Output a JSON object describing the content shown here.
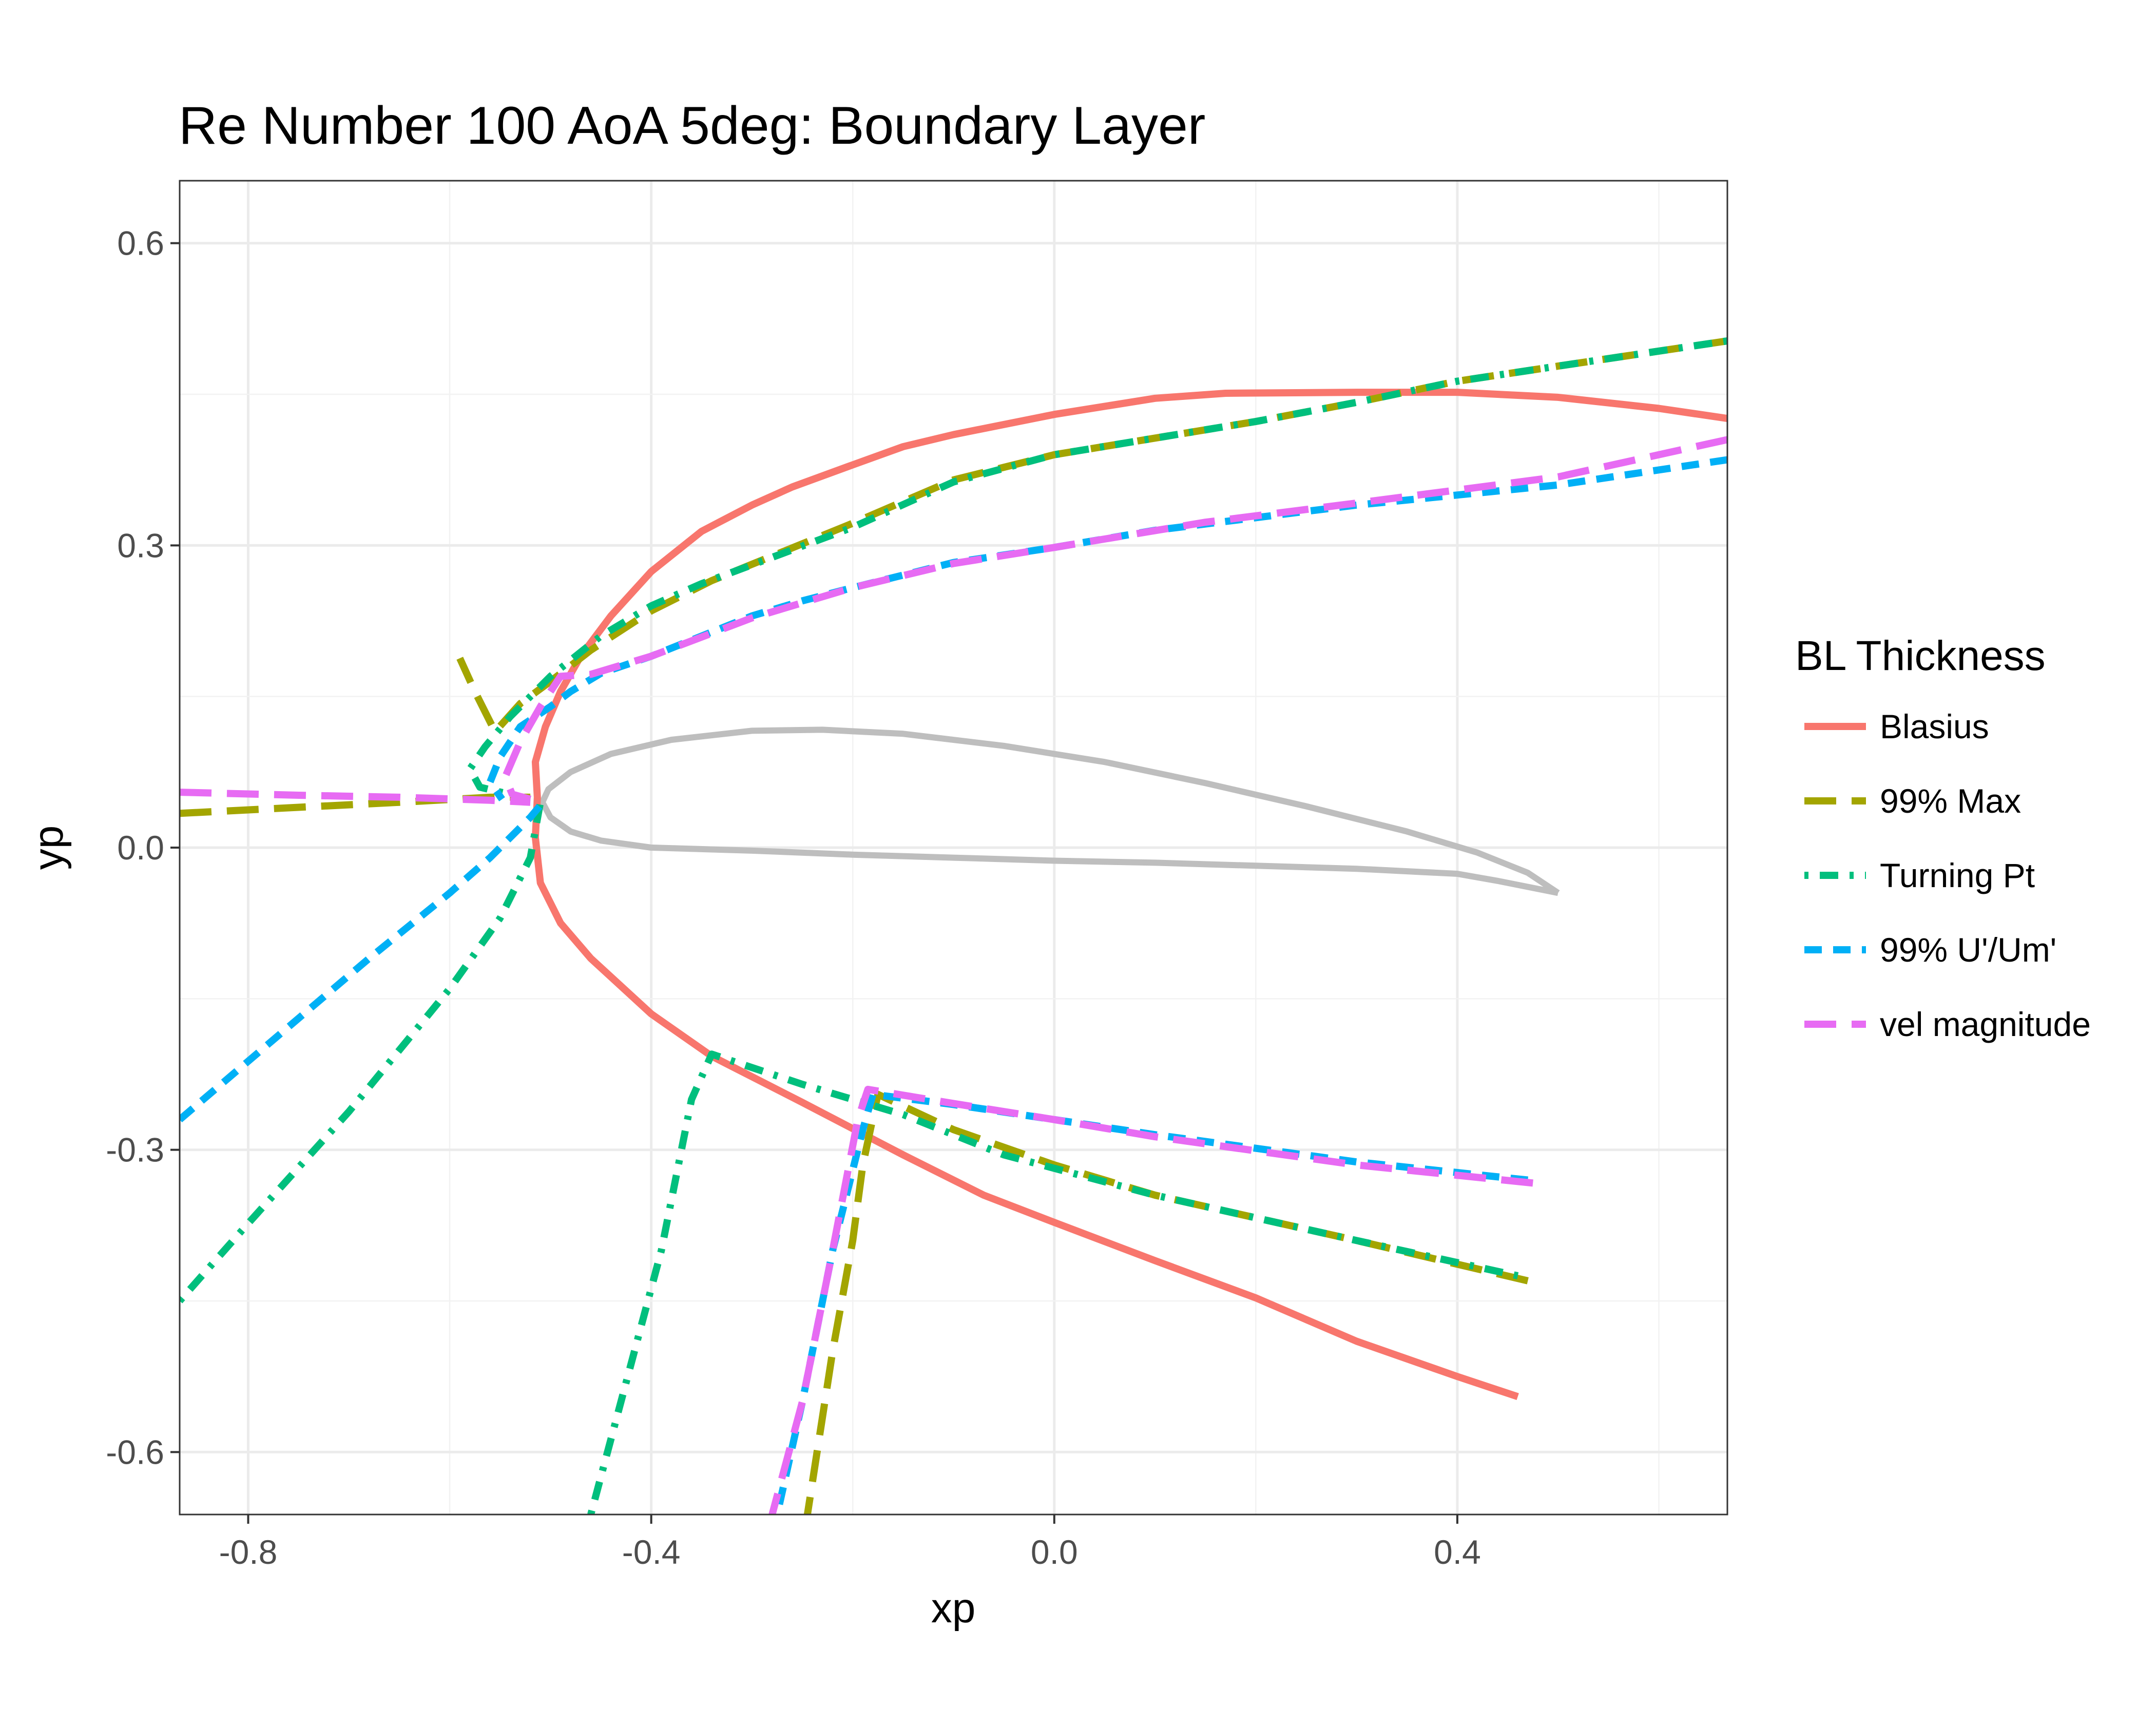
{
  "chart_data": {
    "type": "line",
    "title": "Re Number 100 AoA 5deg: Boundary Layer",
    "xlabel": "xp",
    "ylabel": "yp",
    "xlim": [
      -0.868,
      0.668
    ],
    "ylim": [
      -0.662,
      0.662
    ],
    "x_ticks": [
      -0.8,
      -0.4,
      0.0,
      0.4
    ],
    "x_tick_labels": [
      "-0.8",
      "-0.4",
      "0.0",
      "0.4"
    ],
    "y_ticks": [
      -0.6,
      -0.3,
      0.0,
      0.3,
      0.6
    ],
    "y_tick_labels": [
      "-0.6",
      "-0.3",
      "0.0",
      "0.3",
      "0.6"
    ],
    "grid": true,
    "legend": {
      "title": "BL Thickness",
      "position": "right"
    },
    "airfoil": {
      "color": "#bebebe",
      "points": [
        [
          0.5,
          -0.045
        ],
        [
          0.44,
          -0.033
        ],
        [
          0.4,
          -0.026
        ],
        [
          0.3,
          -0.021
        ],
        [
          0.2,
          -0.018
        ],
        [
          0.1,
          -0.015
        ],
        [
          0.0,
          -0.013
        ],
        [
          -0.1,
          -0.01
        ],
        [
          -0.2,
          -0.007
        ],
        [
          -0.3,
          -0.003
        ],
        [
          -0.4,
          0.0
        ],
        [
          -0.45,
          0.007
        ],
        [
          -0.48,
          0.016
        ],
        [
          -0.5,
          0.03
        ],
        [
          -0.508,
          0.045
        ],
        [
          -0.502,
          0.058
        ],
        [
          -0.48,
          0.075
        ],
        [
          -0.44,
          0.093
        ],
        [
          -0.38,
          0.107
        ],
        [
          -0.3,
          0.116
        ],
        [
          -0.23,
          0.117
        ],
        [
          -0.15,
          0.113
        ],
        [
          -0.05,
          0.101
        ],
        [
          0.05,
          0.085
        ],
        [
          0.15,
          0.064
        ],
        [
          0.25,
          0.041
        ],
        [
          0.35,
          0.016
        ],
        [
          0.42,
          -0.005
        ],
        [
          0.47,
          -0.025
        ],
        [
          0.5,
          -0.045
        ]
      ]
    },
    "series": [
      {
        "name": "Blasius",
        "color": "#f8766d",
        "dash": "solid",
        "segments": [
          [
            [
              0.668,
              0.426
            ],
            [
              0.6,
              0.436
            ],
            [
              0.5,
              0.447
            ],
            [
              0.4,
              0.452
            ],
            [
              0.3,
              0.452
            ],
            [
              0.17,
              0.451
            ],
            [
              0.1,
              0.446
            ],
            [
              0.0,
              0.43
            ],
            [
              -0.1,
              0.41
            ],
            [
              -0.15,
              0.398
            ],
            [
              -0.2,
              0.38
            ],
            [
              -0.26,
              0.358
            ],
            [
              -0.3,
              0.34
            ],
            [
              -0.35,
              0.314
            ],
            [
              -0.4,
              0.274
            ],
            [
              -0.44,
              0.23
            ],
            [
              -0.47,
              0.19
            ],
            [
              -0.49,
              0.155
            ],
            [
              -0.505,
              0.12
            ],
            [
              -0.515,
              0.085
            ],
            [
              -0.513,
              0.05
            ],
            [
              -0.515,
              0.01
            ],
            [
              -0.51,
              -0.035
            ],
            [
              -0.49,
              -0.075
            ],
            [
              -0.46,
              -0.11
            ],
            [
              -0.4,
              -0.165
            ],
            [
              -0.34,
              -0.207
            ],
            [
              -0.25,
              -0.253
            ],
            [
              -0.15,
              -0.305
            ],
            [
              -0.07,
              -0.345
            ],
            [
              0.0,
              -0.372
            ],
            [
              0.1,
              -0.41
            ],
            [
              0.2,
              -0.447
            ],
            [
              0.3,
              -0.49
            ],
            [
              0.4,
              -0.525
            ],
            [
              0.46,
              -0.545
            ]
          ]
        ]
      },
      {
        "name": "99% Max",
        "color": "#a3a500",
        "dash": "longdash",
        "segments": [
          [
            [
              0.668,
              0.503
            ],
            [
              0.5,
              0.478
            ],
            [
              0.4,
              0.463
            ],
            [
              0.3,
              0.442
            ],
            [
              0.2,
              0.423
            ],
            [
              0.0,
              0.39
            ],
            [
              -0.1,
              0.365
            ],
            [
              -0.2,
              0.322
            ],
            [
              -0.34,
              0.265
            ],
            [
              -0.4,
              0.235
            ],
            [
              -0.46,
              0.196
            ],
            [
              -0.5,
              0.165
            ],
            [
              -0.53,
              0.143
            ],
            [
              -0.555,
              0.115
            ],
            [
              -0.575,
              0.155
            ],
            [
              -0.59,
              0.188
            ]
          ],
          [
            [
              -0.868,
              0.034
            ],
            [
              -0.75,
              0.04
            ],
            [
              -0.65,
              0.045
            ],
            [
              -0.56,
              0.05
            ],
            [
              -0.52,
              0.05
            ]
          ],
          [
            [
              0.47,
              -0.43
            ],
            [
              0.3,
              -0.39
            ],
            [
              0.1,
              -0.345
            ],
            [
              0.0,
              -0.315
            ],
            [
              -0.1,
              -0.28
            ],
            [
              -0.175,
              -0.245
            ],
            [
              -0.19,
              -0.315
            ],
            [
              -0.2,
              -0.39
            ],
            [
              -0.22,
              -0.5
            ],
            [
              -0.245,
              -0.662
            ]
          ]
        ]
      },
      {
        "name": "Turning Pt",
        "color": "#00bf7d",
        "dash": "dotdash",
        "segments": [
          [
            [
              0.668,
              0.503
            ],
            [
              0.5,
              0.478
            ],
            [
              0.4,
              0.463
            ],
            [
              0.3,
              0.442
            ],
            [
              0.2,
              0.423
            ],
            [
              0.0,
              0.39
            ],
            [
              -0.1,
              0.363
            ],
            [
              -0.2,
              0.318
            ],
            [
              -0.35,
              0.262
            ],
            [
              -0.4,
              0.24
            ],
            [
              -0.45,
              0.21
            ],
            [
              -0.5,
              0.17
            ],
            [
              -0.54,
              0.13
            ],
            [
              -0.565,
              0.1
            ],
            [
              -0.58,
              0.078
            ],
            [
              -0.57,
              0.06
            ],
            [
              -0.52,
              0.048
            ]
          ],
          [
            [
              -0.868,
              -0.45
            ],
            [
              -0.8,
              -0.373
            ],
            [
              -0.7,
              -0.262
            ],
            [
              -0.6,
              -0.14
            ],
            [
              -0.55,
              -0.07
            ],
            [
              -0.52,
              -0.01
            ],
            [
              -0.51,
              0.045
            ]
          ],
          [
            [
              0.46,
              -0.425
            ],
            [
              0.3,
              -0.39
            ],
            [
              0.1,
              -0.345
            ],
            [
              -0.05,
              -0.305
            ],
            [
              -0.15,
              -0.265
            ],
            [
              -0.25,
              -0.235
            ],
            [
              -0.34,
              -0.205
            ],
            [
              -0.36,
              -0.25
            ],
            [
              -0.39,
              -0.4
            ],
            [
              -0.43,
              -0.55
            ],
            [
              -0.46,
              -0.662
            ]
          ]
        ]
      },
      {
        "name": "99% U'/Um'",
        "color": "#00b0f6",
        "dash": "dashed",
        "segments": [
          [
            [
              0.668,
              0.385
            ],
            [
              0.5,
              0.36
            ],
            [
              0.3,
              0.34
            ],
            [
              0.1,
              0.315
            ],
            [
              0.0,
              0.298
            ],
            [
              -0.1,
              0.283
            ],
            [
              -0.2,
              0.258
            ],
            [
              -0.25,
              0.245
            ],
            [
              -0.3,
              0.23
            ],
            [
              -0.4,
              0.19
            ],
            [
              -0.45,
              0.173
            ],
            [
              -0.48,
              0.155
            ],
            [
              -0.5,
              0.14
            ],
            [
              -0.53,
              0.12
            ],
            [
              -0.55,
              0.09
            ],
            [
              -0.56,
              0.065
            ],
            [
              -0.548,
              0.048
            ]
          ],
          [
            [
              -0.868,
              -0.27
            ],
            [
              -0.78,
              -0.195
            ],
            [
              -0.68,
              -0.11
            ],
            [
              -0.6,
              -0.045
            ],
            [
              -0.56,
              -0.01
            ],
            [
              -0.52,
              0.03
            ],
            [
              -0.505,
              0.048
            ]
          ],
          [
            [
              0.47,
              -0.33
            ],
            [
              0.3,
              -0.312
            ],
            [
              0.1,
              -0.285
            ],
            [
              0.0,
              -0.27
            ],
            [
              -0.1,
              -0.255
            ],
            [
              -0.18,
              -0.245
            ],
            [
              -0.19,
              -0.28
            ],
            [
              -0.22,
              -0.4
            ],
            [
              -0.25,
              -0.55
            ],
            [
              -0.275,
              -0.662
            ]
          ]
        ]
      },
      {
        "name": "vel magnitude",
        "color": "#e76bf3",
        "dash": "longdash",
        "segments": [
          [
            [
              0.668,
              0.405
            ],
            [
              0.5,
              0.368
            ],
            [
              0.3,
              0.342
            ],
            [
              0.15,
              0.323
            ],
            [
              0.0,
              0.298
            ],
            [
              -0.1,
              0.282
            ],
            [
              -0.2,
              0.258
            ],
            [
              -0.3,
              0.228
            ],
            [
              -0.4,
              0.19
            ],
            [
              -0.46,
              0.172
            ],
            [
              -0.49,
              0.17
            ],
            [
              -0.51,
              0.14
            ],
            [
              -0.53,
              0.105
            ],
            [
              -0.545,
              0.07
            ],
            [
              -0.538,
              0.053
            ],
            [
              -0.52,
              0.048
            ]
          ],
          [
            [
              -0.868,
              0.055
            ],
            [
              -0.75,
              0.052
            ],
            [
              -0.65,
              0.05
            ],
            [
              -0.56,
              0.047
            ],
            [
              -0.52,
              0.045
            ]
          ],
          [
            [
              0.475,
              -0.333
            ],
            [
              0.3,
              -0.315
            ],
            [
              0.1,
              -0.287
            ],
            [
              0.0,
              -0.27
            ],
            [
              -0.1,
              -0.254
            ],
            [
              -0.185,
              -0.24
            ],
            [
              -0.195,
              -0.27
            ],
            [
              -0.22,
              -0.4
            ],
            [
              -0.25,
              -0.55
            ],
            [
              -0.28,
              -0.662
            ]
          ]
        ]
      }
    ]
  }
}
